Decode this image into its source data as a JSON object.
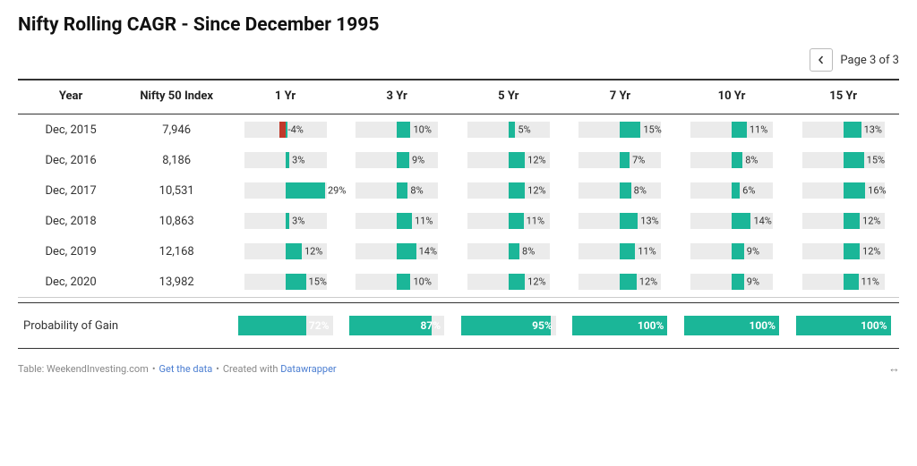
{
  "title": "Nifty Rolling CAGR - Since December 1995",
  "pager": {
    "label": "Page 3 of 3"
  },
  "columns": {
    "year": "Year",
    "index": "Nifty 50 Index",
    "periods": [
      "1 Yr",
      "3 Yr",
      "5 Yr",
      "7 Yr",
      "10 Yr",
      "15 Yr"
    ]
  },
  "colors": {
    "positive": "#1bb698",
    "negative": "#c0392b",
    "bar_bg": "#ebebeb",
    "text": "#333333",
    "rule_strong": "#333333",
    "rule_light": "#cccccc",
    "link": "#4a7dd1"
  },
  "bar_domain": {
    "min": -30,
    "max": 30
  },
  "rows": [
    {
      "year": "Dec, 2015",
      "index": "7,946",
      "values": [
        -4,
        10,
        5,
        15,
        11,
        13
      ]
    },
    {
      "year": "Dec, 2016",
      "index": "8,186",
      "values": [
        3,
        9,
        12,
        7,
        8,
        15
      ]
    },
    {
      "year": "Dec, 2017",
      "index": "10,531",
      "values": [
        29,
        8,
        12,
        8,
        6,
        16
      ]
    },
    {
      "year": "Dec, 2018",
      "index": "10,863",
      "values": [
        3,
        11,
        11,
        13,
        14,
        12
      ]
    },
    {
      "year": "Dec, 2019",
      "index": "12,168",
      "values": [
        12,
        14,
        8,
        11,
        9,
        12
      ]
    },
    {
      "year": "Dec, 2020",
      "index": "13,982",
      "values": [
        15,
        10,
        12,
        12,
        9,
        11
      ]
    }
  ],
  "probability": {
    "label": "Probability of Gain",
    "values": [
      72,
      87,
      95,
      100,
      100,
      100
    ]
  },
  "footer": {
    "source_prefix": "Table: ",
    "source": "WeekendInvesting.com",
    "get_data": "Get the data",
    "created_prefix": "Created with ",
    "created_with": "Datawrapper"
  }
}
